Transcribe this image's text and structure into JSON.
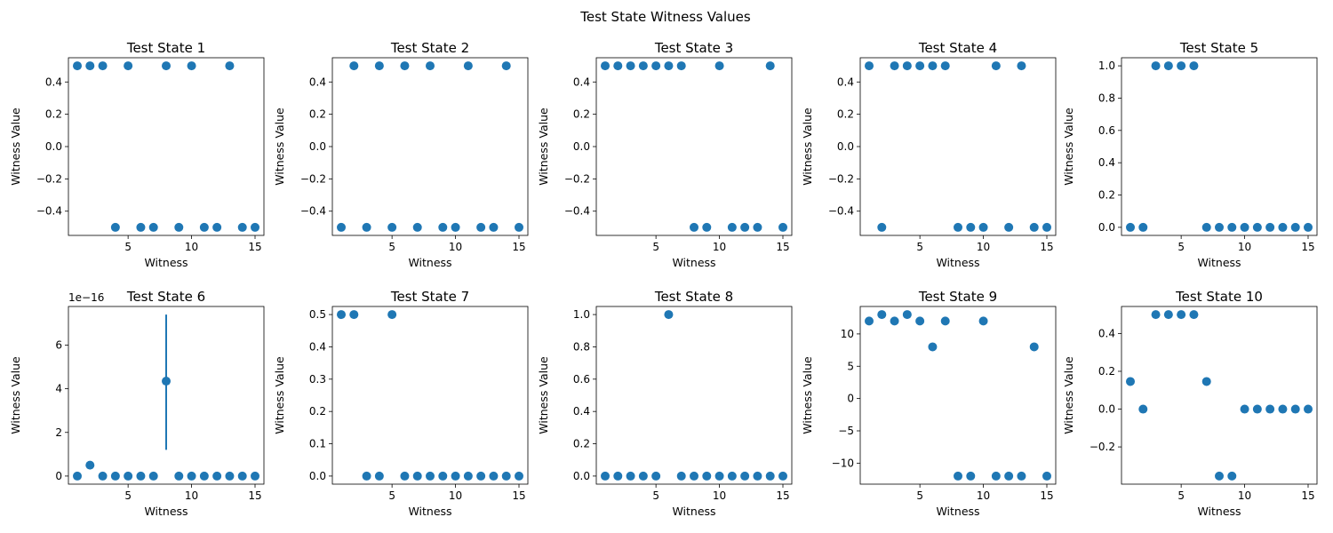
{
  "figure": {
    "title": "Test State Witness Values",
    "marker_color": "#1f77b4"
  },
  "chart_data": [
    {
      "type": "scatter",
      "title": "Test State 1",
      "xlabel": "Witness",
      "ylabel": "Witness Value",
      "x": [
        1,
        2,
        3,
        4,
        5,
        6,
        7,
        8,
        9,
        10,
        11,
        12,
        13,
        14,
        15
      ],
      "y": [
        0.5,
        0.5,
        0.5,
        -0.5,
        0.5,
        -0.5,
        -0.5,
        0.5,
        -0.5,
        0.5,
        -0.5,
        -0.5,
        0.5,
        -0.5,
        -0.5
      ],
      "xlim": [
        0.3,
        15.7
      ],
      "ylim": [
        -0.55,
        0.55
      ],
      "xticks": [
        5,
        10,
        15
      ],
      "xticklabels": [
        "5",
        "10",
        "15"
      ],
      "yticks": [
        -0.4,
        -0.2,
        0.0,
        0.2,
        0.4
      ],
      "yticklabels": [
        "−0.4",
        "−0.2",
        "0.0",
        "0.2",
        "0.4"
      ]
    },
    {
      "type": "scatter",
      "title": "Test State 2",
      "xlabel": "Witness",
      "ylabel": "Witness Value",
      "x": [
        1,
        2,
        3,
        4,
        5,
        6,
        7,
        8,
        9,
        10,
        11,
        12,
        13,
        14,
        15
      ],
      "y": [
        -0.5,
        0.5,
        -0.5,
        0.5,
        -0.5,
        0.5,
        -0.5,
        0.5,
        -0.5,
        -0.5,
        0.5,
        -0.5,
        -0.5,
        0.5,
        -0.5
      ],
      "xlim": [
        0.3,
        15.7
      ],
      "ylim": [
        -0.55,
        0.55
      ],
      "xticks": [
        5,
        10,
        15
      ],
      "xticklabels": [
        "5",
        "10",
        "15"
      ],
      "yticks": [
        -0.4,
        -0.2,
        0.0,
        0.2,
        0.4
      ],
      "yticklabels": [
        "−0.4",
        "−0.2",
        "0.0",
        "0.2",
        "0.4"
      ]
    },
    {
      "type": "scatter",
      "title": "Test State 3",
      "xlabel": "Witness",
      "ylabel": "Witness Value",
      "x": [
        1,
        2,
        3,
        4,
        5,
        6,
        7,
        8,
        9,
        10,
        11,
        12,
        13,
        14,
        15
      ],
      "y": [
        0.5,
        0.5,
        0.5,
        0.5,
        0.5,
        0.5,
        0.5,
        -0.5,
        -0.5,
        0.5,
        -0.5,
        -0.5,
        -0.5,
        0.5,
        -0.5
      ],
      "xlim": [
        0.3,
        15.7
      ],
      "ylim": [
        -0.55,
        0.55
      ],
      "xticks": [
        5,
        10,
        15
      ],
      "xticklabels": [
        "5",
        "10",
        "15"
      ],
      "yticks": [
        -0.4,
        -0.2,
        0.0,
        0.2,
        0.4
      ],
      "yticklabels": [
        "−0.4",
        "−0.2",
        "0.0",
        "0.2",
        "0.4"
      ]
    },
    {
      "type": "scatter",
      "title": "Test State 4",
      "xlabel": "Witness",
      "ylabel": "Witness Value",
      "x": [
        1,
        2,
        3,
        4,
        5,
        6,
        7,
        8,
        9,
        10,
        11,
        12,
        13,
        14,
        15
      ],
      "y": [
        0.5,
        -0.5,
        0.5,
        0.5,
        0.5,
        0.5,
        0.5,
        -0.5,
        -0.5,
        -0.5,
        0.5,
        -0.5,
        0.5,
        -0.5,
        -0.5
      ],
      "xlim": [
        0.3,
        15.7
      ],
      "ylim": [
        -0.55,
        0.55
      ],
      "xticks": [
        5,
        10,
        15
      ],
      "xticklabels": [
        "5",
        "10",
        "15"
      ],
      "yticks": [
        -0.4,
        -0.2,
        0.0,
        0.2,
        0.4
      ],
      "yticklabels": [
        "−0.4",
        "−0.2",
        "0.0",
        "0.2",
        "0.4"
      ]
    },
    {
      "type": "scatter",
      "title": "Test State 5",
      "xlabel": "Witness",
      "ylabel": "Witness Value",
      "x": [
        1,
        2,
        3,
        4,
        5,
        6,
        7,
        8,
        9,
        10,
        11,
        12,
        13,
        14,
        15
      ],
      "y": [
        0,
        0,
        1,
        1,
        1,
        1,
        0,
        0,
        0,
        0,
        0,
        0,
        0,
        0,
        0
      ],
      "xlim": [
        0.3,
        15.7
      ],
      "ylim": [
        -0.05,
        1.05
      ],
      "xticks": [
        5,
        10,
        15
      ],
      "xticklabels": [
        "5",
        "10",
        "15"
      ],
      "yticks": [
        0,
        0.2,
        0.4,
        0.6,
        0.8,
        1.0
      ],
      "yticklabels": [
        "0.0",
        "0.2",
        "0.4",
        "0.6",
        "0.8",
        "1.0"
      ]
    },
    {
      "type": "scatter",
      "title": "Test State 6",
      "xlabel": "Witness",
      "ylabel": "Witness Value",
      "y_scale_label": "1e−16",
      "x": [
        1,
        2,
        3,
        4,
        5,
        6,
        7,
        8,
        9,
        10,
        11,
        12,
        13,
        14,
        15
      ],
      "y": [
        0,
        0.5,
        0,
        0,
        0,
        0,
        0,
        4.35,
        0,
        0,
        0,
        0,
        0,
        0,
        0
      ],
      "errorbars": [
        {
          "x": 8,
          "low": 1.2,
          "high": 7.4
        }
      ],
      "xlim": [
        0.3,
        15.7
      ],
      "ylim": [
        -0.37,
        7.77
      ],
      "xticks": [
        5,
        10,
        15
      ],
      "xticklabels": [
        "5",
        "10",
        "15"
      ],
      "yticks": [
        0,
        2,
        4,
        6
      ],
      "yticklabels": [
        "0",
        "2",
        "4",
        "6"
      ]
    },
    {
      "type": "scatter",
      "title": "Test State 7",
      "xlabel": "Witness",
      "ylabel": "Witness Value",
      "x": [
        1,
        2,
        3,
        4,
        5,
        6,
        7,
        8,
        9,
        10,
        11,
        12,
        13,
        14,
        15
      ],
      "y": [
        0.5,
        0.5,
        0,
        0,
        0.5,
        0,
        0,
        0,
        0,
        0,
        0,
        0,
        0,
        0,
        0
      ],
      "xlim": [
        0.3,
        15.7
      ],
      "ylim": [
        -0.025,
        0.525
      ],
      "xticks": [
        5,
        10,
        15
      ],
      "xticklabels": [
        "5",
        "10",
        "15"
      ],
      "yticks": [
        0,
        0.1,
        0.2,
        0.3,
        0.4,
        0.5
      ],
      "yticklabels": [
        "0.0",
        "0.1",
        "0.2",
        "0.3",
        "0.4",
        "0.5"
      ]
    },
    {
      "type": "scatter",
      "title": "Test State 8",
      "xlabel": "Witness",
      "ylabel": "Witness Value",
      "x": [
        1,
        2,
        3,
        4,
        5,
        6,
        7,
        8,
        9,
        10,
        11,
        12,
        13,
        14,
        15
      ],
      "y": [
        0,
        0,
        0,
        0,
        0,
        1,
        0,
        0,
        0,
        0,
        0,
        0,
        0,
        0,
        0
      ],
      "xlim": [
        0.3,
        15.7
      ],
      "ylim": [
        -0.05,
        1.05
      ],
      "xticks": [
        5,
        10,
        15
      ],
      "xticklabels": [
        "5",
        "10",
        "15"
      ],
      "yticks": [
        0,
        0.2,
        0.4,
        0.6,
        0.8,
        1.0
      ],
      "yticklabels": [
        "0.0",
        "0.2",
        "0.4",
        "0.6",
        "0.8",
        "1.0"
      ]
    },
    {
      "type": "scatter",
      "title": "Test State 9",
      "xlabel": "Witness",
      "ylabel": "Witness Value",
      "x": [
        1,
        2,
        3,
        4,
        5,
        6,
        7,
        8,
        9,
        10,
        11,
        12,
        13,
        14,
        15
      ],
      "y": [
        12,
        13,
        12,
        13,
        12,
        8,
        12,
        -12,
        -12,
        12,
        -12,
        -12,
        -12,
        8,
        -12
      ],
      "xlim": [
        0.3,
        15.7
      ],
      "ylim": [
        -13.25,
        14.25
      ],
      "xticks": [
        5,
        10,
        15
      ],
      "xticklabels": [
        "5",
        "10",
        "15"
      ],
      "yticks": [
        -10,
        -5,
        0,
        5,
        10
      ],
      "yticklabels": [
        "−10",
        "−5",
        "0",
        "5",
        "10"
      ]
    },
    {
      "type": "scatter",
      "title": "Test State 10",
      "xlabel": "Witness",
      "ylabel": "Witness Value",
      "x": [
        1,
        2,
        3,
        4,
        5,
        6,
        7,
        8,
        9,
        10,
        11,
        12,
        13,
        14,
        15
      ],
      "y": [
        0.146,
        0,
        0.5,
        0.5,
        0.5,
        0.5,
        0.146,
        -0.354,
        -0.354,
        0,
        0,
        0,
        0,
        0,
        0
      ],
      "xlim": [
        0.3,
        15.7
      ],
      "ylim": [
        -0.397,
        0.543
      ],
      "xticks": [
        5,
        10,
        15
      ],
      "xticklabels": [
        "5",
        "10",
        "15"
      ],
      "yticks": [
        -0.2,
        0,
        0.2,
        0.4
      ],
      "yticklabels": [
        "−0.2",
        "0.0",
        "0.2",
        "0.4"
      ]
    }
  ]
}
